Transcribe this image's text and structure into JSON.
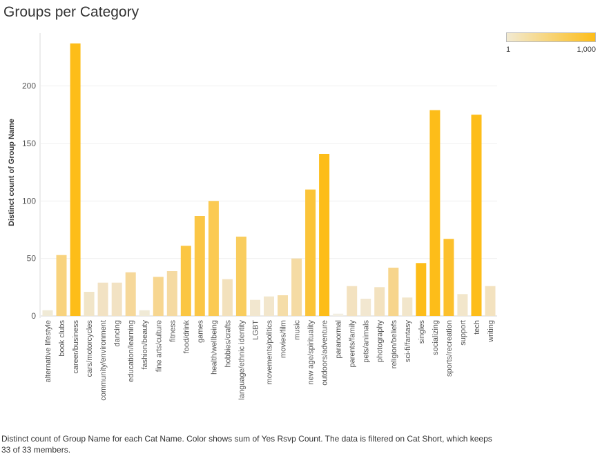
{
  "title": "Groups per Category",
  "footnote": "Distinct count of Group Name for each Cat Name.  Color shows sum of Yes Rsvp Count. The data is filtered on Cat Short, which keeps 33 of 33 members.",
  "legend": {
    "min_label": "1",
    "max_label": "1,000",
    "color_low": "#f2ead2",
    "color_high": "#fdbd19"
  },
  "chart_data": {
    "type": "bar",
    "ylabel": "Distinct count of Group Name",
    "ylim": [
      0,
      240
    ],
    "yticks": [
      0,
      50,
      100,
      150,
      200
    ],
    "grid": true,
    "legend_position": "top-right",
    "categories": [
      "alternative lifestyle",
      "book clubs",
      "career/business",
      "cars/motorcycles",
      "community/environment",
      "dancing",
      "education/learning",
      "fashion/beauty",
      "fine arts/culture",
      "fitness",
      "food/drink",
      "games",
      "health/wellbeing",
      "hobbies/crafts",
      "language/ethnic identity",
      "LGBT",
      "movements/politics",
      "movies/film",
      "music",
      "new age/spirituality",
      "outdoors/adventure",
      "paranormal",
      "parents/family",
      "pets/animals",
      "photography",
      "religion/beliefs",
      "sci-fi/fantasy",
      "singles",
      "socializing",
      "sports/recreation",
      "support",
      "tech",
      "writing"
    ],
    "values": [
      5,
      53,
      237,
      21,
      29,
      29,
      38,
      5,
      34,
      39,
      61,
      87,
      100,
      32,
      69,
      14,
      17,
      18,
      50,
      110,
      141,
      2,
      26,
      15,
      25,
      42,
      16,
      46,
      179,
      67,
      19,
      175,
      26
    ],
    "colors": [
      "#f0ead6",
      "#f8d37e",
      "#fdbd19",
      "#f1e5c8",
      "#f2e2c3",
      "#f2e2c3",
      "#f6d89a",
      "#f0ead6",
      "#f7d690",
      "#f5daa2",
      "#fbc642",
      "#fbc645",
      "#fbca52",
      "#f3e1bc",
      "#f9cd5e",
      "#f2e7cf",
      "#f2e6cc",
      "#f5dda8",
      "#f5dba4",
      "#fbc439",
      "#fdbd19",
      "#f2eee2",
      "#f3e2c0",
      "#f2e7d0",
      "#f3e2bf",
      "#f7d58c",
      "#f2e6cb",
      "#fdbd19",
      "#fdbd19",
      "#fcc02c",
      "#f2e6cb",
      "#fdbd19",
      "#f3e2bf"
    ]
  }
}
